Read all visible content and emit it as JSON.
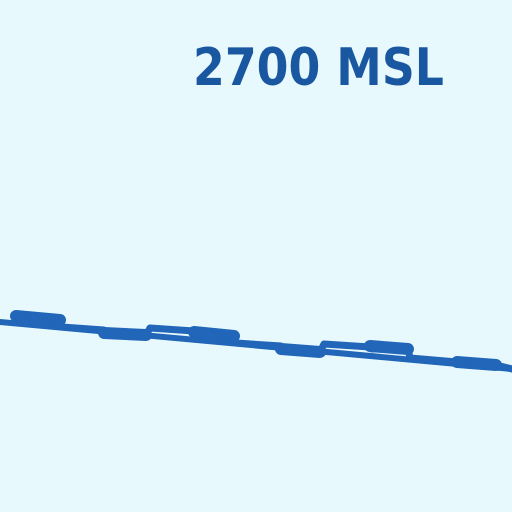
{
  "map": {
    "altitude_label": "2700 MSL",
    "colors": {
      "background": "#e8f9fd",
      "label": "#1a57a1",
      "boundary": "#2166b8"
    },
    "boundary_symbol": "dashed-airspace-boundary-line"
  }
}
